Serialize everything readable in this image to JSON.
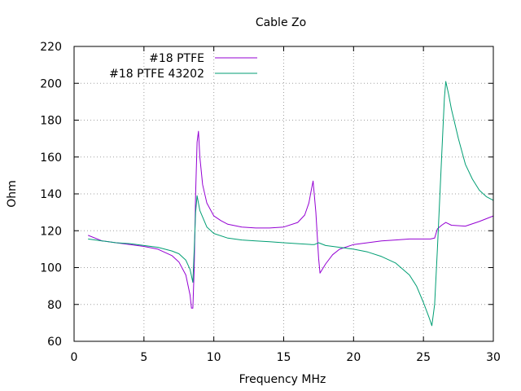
{
  "chart_data": {
    "type": "line",
    "title": "Cable Zo",
    "xlabel": "Frequency MHz",
    "ylabel": "Ohm",
    "xlim": [
      0,
      30
    ],
    "ylim": [
      60,
      220
    ],
    "xticks": [
      0,
      5,
      10,
      15,
      20,
      25,
      30
    ],
    "yticks": [
      60,
      80,
      100,
      120,
      140,
      160,
      180,
      200,
      220
    ],
    "grid": true,
    "legend_position": "top-left",
    "series": [
      {
        "name": "#18 PTFE",
        "color": "#9400d3",
        "points": [
          [
            1,
            117.5
          ],
          [
            2,
            114.5
          ],
          [
            3,
            113.5
          ],
          [
            4,
            112.5
          ],
          [
            5,
            111.5
          ],
          [
            6,
            110
          ],
          [
            7,
            106.5
          ],
          [
            7.5,
            103
          ],
          [
            8,
            96
          ],
          [
            8.3,
            85
          ],
          [
            8.4,
            78
          ],
          [
            8.5,
            78
          ],
          [
            8.6,
            100
          ],
          [
            8.7,
            140
          ],
          [
            8.8,
            168
          ],
          [
            8.9,
            174
          ],
          [
            9.0,
            160
          ],
          [
            9.2,
            145
          ],
          [
            9.5,
            135
          ],
          [
            10,
            128
          ],
          [
            10.5,
            125.5
          ],
          [
            11,
            123.5
          ],
          [
            12,
            122
          ],
          [
            13,
            121.5
          ],
          [
            14,
            121.5
          ],
          [
            15,
            122
          ],
          [
            16,
            124.5
          ],
          [
            16.5,
            128.5
          ],
          [
            16.8,
            135
          ],
          [
            17,
            143
          ],
          [
            17.1,
            147
          ],
          [
            17.3,
            130
          ],
          [
            17.5,
            105
          ],
          [
            17.6,
            97
          ],
          [
            18,
            102
          ],
          [
            18.5,
            107
          ],
          [
            19,
            110
          ],
          [
            20,
            112.5
          ],
          [
            21,
            113.5
          ],
          [
            22,
            114.5
          ],
          [
            23,
            115
          ],
          [
            24,
            115.5
          ],
          [
            25,
            115.5
          ],
          [
            25.5,
            115.5
          ],
          [
            25.8,
            116
          ],
          [
            26,
            121
          ],
          [
            26.3,
            123
          ],
          [
            26.6,
            124.5
          ],
          [
            27,
            123
          ],
          [
            28,
            122.5
          ],
          [
            29,
            125
          ],
          [
            30,
            128
          ]
        ]
      },
      {
        "name": "#18 PTFE 43202",
        "color": "#009e73",
        "points": [
          [
            1,
            115.5
          ],
          [
            2,
            114.5
          ],
          [
            3,
            113.5
          ],
          [
            4,
            113
          ],
          [
            5,
            112
          ],
          [
            6,
            111
          ],
          [
            7,
            109
          ],
          [
            7.5,
            107.5
          ],
          [
            8,
            104
          ],
          [
            8.3,
            99
          ],
          [
            8.5,
            92
          ],
          [
            8.6,
            110
          ],
          [
            8.7,
            130
          ],
          [
            8.8,
            139
          ],
          [
            9,
            131
          ],
          [
            9.5,
            122
          ],
          [
            10,
            118.5
          ],
          [
            11,
            116
          ],
          [
            12,
            115
          ],
          [
            13,
            114.5
          ],
          [
            14,
            114
          ],
          [
            15,
            113.5
          ],
          [
            16,
            113
          ],
          [
            17,
            112.5
          ],
          [
            17.2,
            112.5
          ],
          [
            17.5,
            113.5
          ],
          [
            18,
            112
          ],
          [
            19,
            111
          ],
          [
            20,
            110
          ],
          [
            21,
            108.5
          ],
          [
            22,
            106
          ],
          [
            23,
            102.5
          ],
          [
            24,
            96
          ],
          [
            24.5,
            90
          ],
          [
            25,
            81
          ],
          [
            25.4,
            73
          ],
          [
            25.6,
            68.5
          ],
          [
            25.8,
            80
          ],
          [
            26,
            110
          ],
          [
            26.3,
            160
          ],
          [
            26.5,
            192
          ],
          [
            26.6,
            201
          ],
          [
            26.8,
            194
          ],
          [
            27,
            186
          ],
          [
            27.5,
            170
          ],
          [
            28,
            156
          ],
          [
            28.5,
            148
          ],
          [
            29,
            142
          ],
          [
            29.5,
            138.5
          ],
          [
            30,
            136.5
          ]
        ]
      }
    ]
  }
}
